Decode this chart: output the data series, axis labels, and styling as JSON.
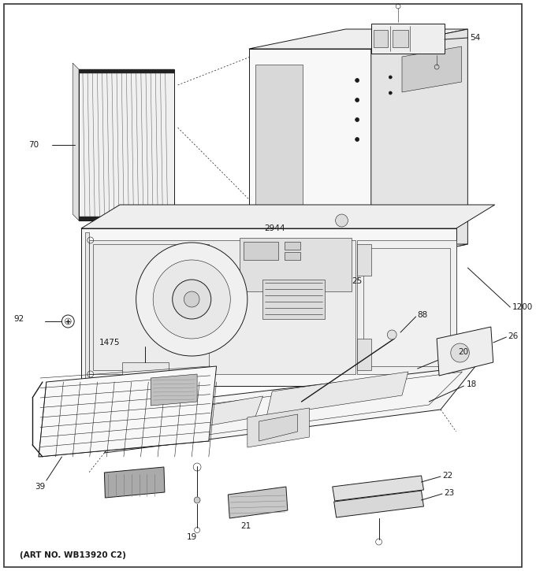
{
  "art_no": "(ART NO. WB13920 C2)",
  "bg": "#ffffff",
  "lc": "#1a1a1a",
  "lw": 0.7,
  "lw_thin": 0.4,
  "fig_w": 6.8,
  "fig_h": 7.25,
  "dpi": 100
}
